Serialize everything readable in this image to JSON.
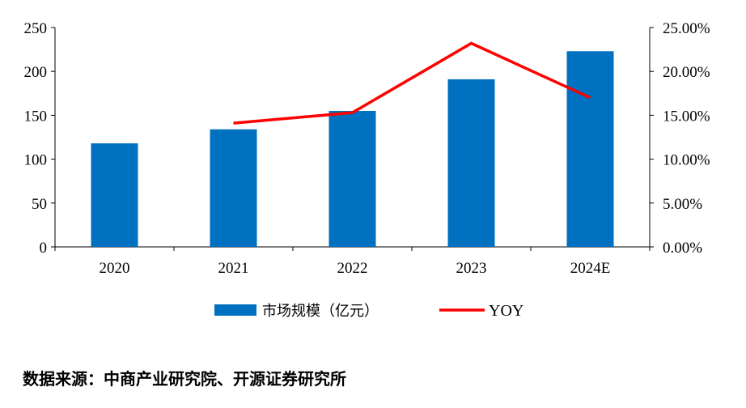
{
  "chart_data": {
    "type": "bar",
    "categories": [
      "2020",
      "2021",
      "2022",
      "2023",
      "2024E"
    ],
    "series": [
      {
        "name": "市场规模（亿元）",
        "type": "bar",
        "axis": "left",
        "values": [
          118,
          134,
          155,
          191,
          223
        ]
      },
      {
        "name": "YOY",
        "type": "line",
        "axis": "right",
        "values": [
          null,
          0.141,
          0.153,
          0.232,
          0.17
        ]
      }
    ],
    "y_left": {
      "min": 0,
      "max": 250,
      "ticks": [
        0,
        50,
        100,
        150,
        200,
        250
      ],
      "tick_labels": [
        "0",
        "50",
        "100",
        "150",
        "200",
        "250"
      ]
    },
    "y_right": {
      "min": 0,
      "max": 0.25,
      "ticks": [
        0,
        0.05,
        0.1,
        0.15,
        0.2,
        0.25
      ],
      "tick_labels": [
        "0.00%",
        "5.00%",
        "10.00%",
        "15.00%",
        "20.00%",
        "25.00%"
      ]
    },
    "grid": false,
    "legend_position": "bottom",
    "colors": {
      "bar": "#0070C0",
      "line": "#FF0000"
    }
  },
  "legend": {
    "bar_label": "市场规模（亿元）",
    "line_label": "YOY"
  },
  "source": "数据来源：中商产业研究院、开源证券研究所"
}
